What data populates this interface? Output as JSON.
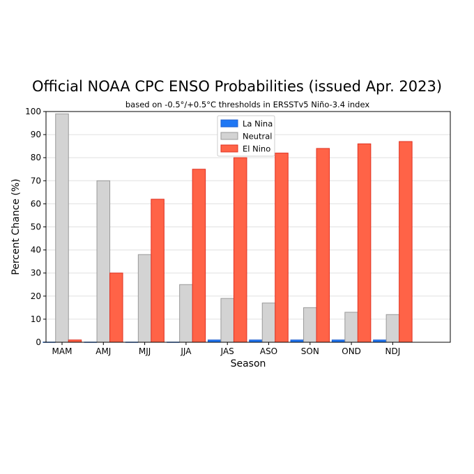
{
  "chart_data": {
    "type": "bar",
    "title": "Official NOAA CPC ENSO Probabilities (issued Apr. 2023)",
    "subtitle": "based on -0.5°/+0.5°C thresholds in ERSSTv5 Niño-3.4 index",
    "xlabel": "Season",
    "ylabel": "Percent Chance (%)",
    "categories": [
      "MAM",
      "AMJ",
      "MJJ",
      "JJA",
      "JAS",
      "ASO",
      "SON",
      "OND",
      "NDJ"
    ],
    "ylim": [
      0,
      100
    ],
    "yticks": [
      0,
      10,
      20,
      30,
      40,
      50,
      60,
      70,
      80,
      90,
      100
    ],
    "grid": true,
    "legend_position": "top-center",
    "series": [
      {
        "name": "La Nina",
        "color": "#1f77f4",
        "values": [
          0,
          0,
          0,
          0,
          1,
          1,
          1,
          1,
          1
        ]
      },
      {
        "name": "Neutral",
        "color": "#d3d3d3",
        "values": [
          99,
          70,
          38,
          25,
          19,
          17,
          15,
          13,
          12
        ]
      },
      {
        "name": "El Nino",
        "color": "#ff6347",
        "values": [
          1,
          30,
          62,
          75,
          80,
          82,
          84,
          86,
          87
        ]
      }
    ]
  }
}
